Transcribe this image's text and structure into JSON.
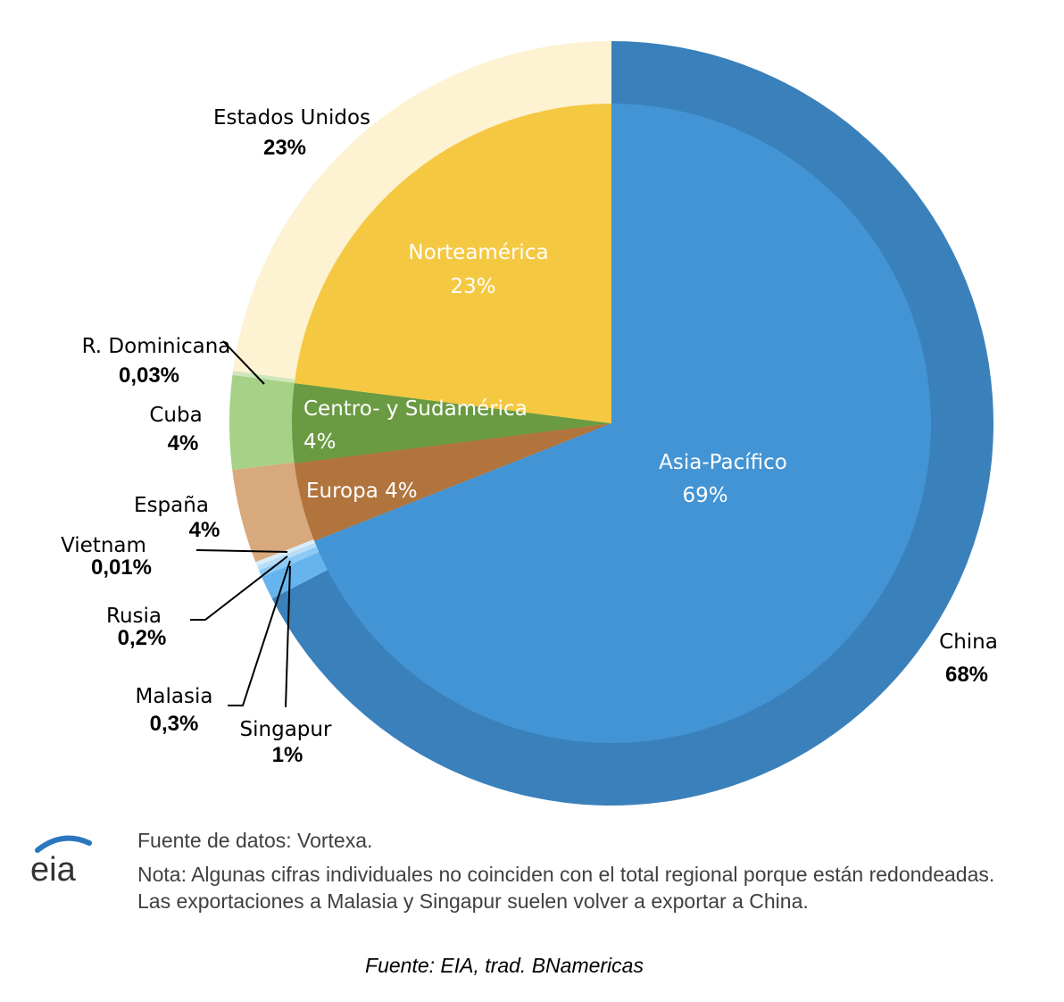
{
  "chart_data": {
    "type": "pie",
    "subtype": "nested-donut",
    "inner": [
      {
        "label": "Asia-Pacífico",
        "value_text": "69%",
        "value": 69,
        "color": "#4394d4",
        "text_color": "#ffffff"
      },
      {
        "label": "Europa",
        "value_text": "4%",
        "value": 4,
        "color": "#b0743c",
        "text_color": "#ffffff"
      },
      {
        "label": "Centro- y Sudamérica",
        "value_text": "4%",
        "value": 4,
        "color": "#6a9a42",
        "text_color": "#ffffff"
      },
      {
        "label": "Norteamérica",
        "value_text": "23%",
        "value": 23,
        "color": "#f5c842",
        "text_color": "#ffffff"
      }
    ],
    "outer": [
      {
        "label": "China",
        "value_text": "68%",
        "value": 68,
        "color": "#3a80bb"
      },
      {
        "label": "Singapur",
        "value_text": "1%",
        "value": 1,
        "color": "#66b4ee"
      },
      {
        "label": "Malasia",
        "value_text": "0,3%",
        "value": 0.3,
        "color": "#8ccaf5"
      },
      {
        "label": "Rusia",
        "value_text": "0,2%",
        "value": 0.2,
        "color": "#b9ddf7"
      },
      {
        "label": "Vietnam",
        "value_text": "0,01%",
        "value": 0.01,
        "color": "#d9ecfa"
      },
      {
        "label": "España",
        "value_text": "4%",
        "value": 4,
        "color": "#d8a97c"
      },
      {
        "label": "Cuba",
        "value_text": "4%",
        "value": 4,
        "color": "#a6d186"
      },
      {
        "label": "R. Dominicana",
        "value_text": "0,03%",
        "value": 0.03,
        "color": "#cfe6bb"
      },
      {
        "label": "Estados Unidos",
        "value_text": "23%",
        "value": 23,
        "color": "#fdf2d1"
      }
    ]
  },
  "footer": {
    "source": "Fuente de datos: Vortexa.",
    "note": "Nota: Algunas cifras individuales no coinciden con el total regional porque están redondeadas. Las exportaciones a Malasia y Singapur suelen volver a exportar a China.",
    "logo_text": "eia",
    "credit": "Fuente: EIA, trad. BNamericas"
  },
  "colors": {
    "logo_blue": "#2a77bf",
    "logo_text": "#333333"
  }
}
